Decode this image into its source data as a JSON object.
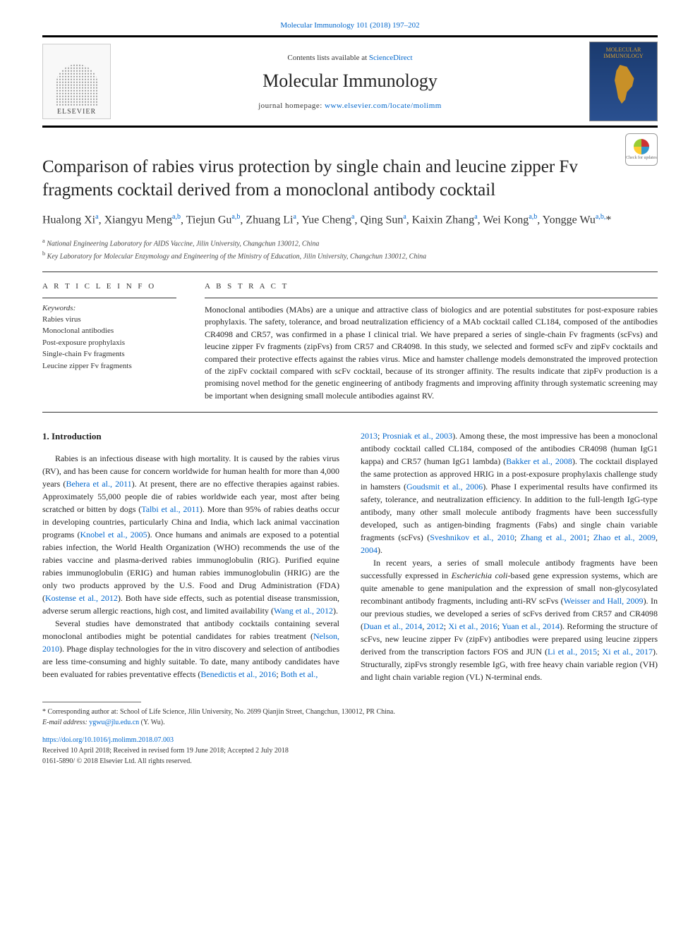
{
  "header": {
    "top_link": "Molecular Immunology 101 (2018) 197–202",
    "contents_line_prefix": "Contents lists available at ",
    "contents_link": "ScienceDirect",
    "journal_title": "Molecular Immunology",
    "homepage_prefix": "journal homepage: ",
    "homepage_link": "www.elsevier.com/locate/molimm",
    "publisher_logo": "ELSEVIER",
    "cover_text1": "MOLECULAR",
    "cover_text2": "IMMUNOLOGY"
  },
  "article": {
    "title": "Comparison of rabies virus protection by single chain and leucine zipper Fv fragments cocktail derived from a monoclonal antibody cocktail",
    "check_updates": "Check for updates",
    "authors_html": "Hualong Xi<sup>a</sup>, Xiangyu Meng<sup>a,b</sup>, Tiejun Gu<sup>a,b</sup>, Zhuang Li<sup>a</sup>, Yue Cheng<sup>a</sup>, Qing Sun<sup>a</sup>, Kaixin Zhang<sup>a</sup>, Wei Kong<sup>a,b</sup>, Yongge Wu<sup>a,b,</sup>*",
    "affiliations": [
      {
        "sup": "a",
        "text": "National Engineering Laboratory for AIDS Vaccine, Jilin University, Changchun 130012, China"
      },
      {
        "sup": "b",
        "text": "Key Laboratory for Molecular Enzymology and Engineering of the Ministry of Education, Jilin University, Changchun 130012, China"
      }
    ]
  },
  "info": {
    "article_info_label": "A R T I C L E  I N F O",
    "abstract_label": "A B S T R A C T",
    "keywords_label": "Keywords:",
    "keywords": [
      "Rabies virus",
      "Monoclonal antibodies",
      "Post-exposure prophylaxis",
      "Single-chain Fv fragments",
      "Leucine zipper Fv fragments"
    ],
    "abstract": "Monoclonal antibodies (MAbs) are a unique and attractive class of biologics and are potential substitutes for post-exposure rabies prophylaxis. The safety, tolerance, and broad neutralization efficiency of a MAb cocktail called CL184, composed of the antibodies CR4098 and CR57, was confirmed in a phase I clinical trial. We have prepared a series of single-chain Fv fragments (scFvs) and leucine zipper Fv fragments (zipFvs) from CR57 and CR4098. In this study, we selected and formed scFv and zipFv cocktails and compared their protective effects against the rabies virus. Mice and hamster challenge models demonstrated the improved protection of the zipFv cocktail compared with scFv cocktail, because of its stronger affinity. The results indicate that zipFv production is a promising novel method for the genetic engineering of antibody fragments and improving affinity through systematic screening may be important when designing small molecule antibodies against RV."
  },
  "body": {
    "intro_heading": "1. Introduction",
    "left_col": [
      "Rabies is an infectious disease with high mortality. It is caused by the rabies virus (RV), and has been cause for concern worldwide for human health for more than 4,000 years (<span class='ref'>Behera et al., 2011</span>). At present, there are no effective therapies against rabies. Approximately 55,000 people die of rabies worldwide each year, most after being scratched or bitten by dogs (<span class='ref'>Talbi et al., 2011</span>). More than 95% of rabies deaths occur in developing countries, particularly China and India, which lack animal vaccination programs (<span class='ref'>Knobel et al., 2005</span>). Once humans and animals are exposed to a potential rabies infection, the World Health Organization (WHO) recommends the use of the rabies vaccine and plasma-derived rabies immunoglobulin (RIG). Purified equine rabies immunoglobulin (ERIG) and human rabies immunoglobulin (HRIG) are the only two products approved by the U.S. Food and Drug Administration (FDA) (<span class='ref'>Kostense et al., 2012</span>). Both have side effects, such as potential disease transmission, adverse serum allergic reactions, high cost, and limited availability (<span class='ref'>Wang et al., 2012</span>).",
      "Several studies have demonstrated that antibody cocktails containing several monoclonal antibodies might be potential candidates for rabies treatment (<span class='ref'>Nelson, 2010</span>). Phage display technologies for the in vitro discovery and selection of antibodies are less time-consuming and highly suitable. To date, many antibody candidates have been evaluated for rabies preventative effects (<span class='ref'>Benedictis et al., 2016</span>; <span class='ref'>Both et al.,</span>"
    ],
    "right_col": [
      "<span class='ref'>2013</span>; <span class='ref'>Prosniak et al., 2003</span>). Among these, the most impressive has been a monoclonal antibody cocktail called CL184, composed of the antibodies CR4098 (human IgG1 kappa) and CR57 (human IgG1 lambda) (<span class='ref'>Bakker et al., 2008</span>). The cocktail displayed the same protection as approved HRIG in a post-exposure prophylaxis challenge study in hamsters (<span class='ref'>Goudsmit et al., 2006</span>). Phase I experimental results have confirmed its safety, tolerance, and neutralization efficiency. In addition to the full-length IgG-type antibody, many other small molecule antibody fragments have been successfully developed, such as antigen-binding fragments (Fabs) and single chain variable fragments (scFvs) (<span class='ref'>Sveshnikov et al., 2010</span>; <span class='ref'>Zhang et al., 2001</span>; <span class='ref'>Zhao et al., 2009</span>, <span class='ref'>2004</span>).",
      "In recent years, a series of small molecule antibody fragments have been successfully expressed in <i>Escherichia coli</i>-based gene expression systems, which are quite amenable to gene manipulation and the expression of small non-glycosylated recombinant antibody fragments, including anti-RV scFvs (<span class='ref'>Weisser and Hall, 2009</span>). In our previous studies, we developed a series of scFvs derived from CR57 and CR4098 (<span class='ref'>Duan et al., 2014</span>, <span class='ref'>2012</span>; <span class='ref'>Xi et al., 2016</span>; <span class='ref'>Yuan et al., 2014</span>). Reforming the structure of scFvs, new leucine zipper Fv (zipFv) antibodies were prepared using leucine zippers derived from the transcription factors FOS and JUN (<span class='ref'>Li et al., 2015</span>; <span class='ref'>Xi et al., 2017</span>). Structurally, zipFvs strongly resemble IgG, with free heavy chain variable region (VH) and light chain variable region (VL) N-terminal ends."
    ]
  },
  "footnotes": {
    "corresponding": "* Corresponding author at: School of Life Science, Jilin University, No. 2699 Qianjin Street, Changchun, 130012, PR China.",
    "email_label": "E-mail address: ",
    "email": "ygwu@jlu.edu.cn",
    "email_suffix": " (Y. Wu).",
    "doi": "https://doi.org/10.1016/j.molimm.2018.07.003",
    "received": "Received 10 April 2018; Received in revised form 19 June 2018; Accepted 2 July 2018",
    "copyright": "0161-5890/ © 2018 Elsevier Ltd. All rights reserved."
  }
}
